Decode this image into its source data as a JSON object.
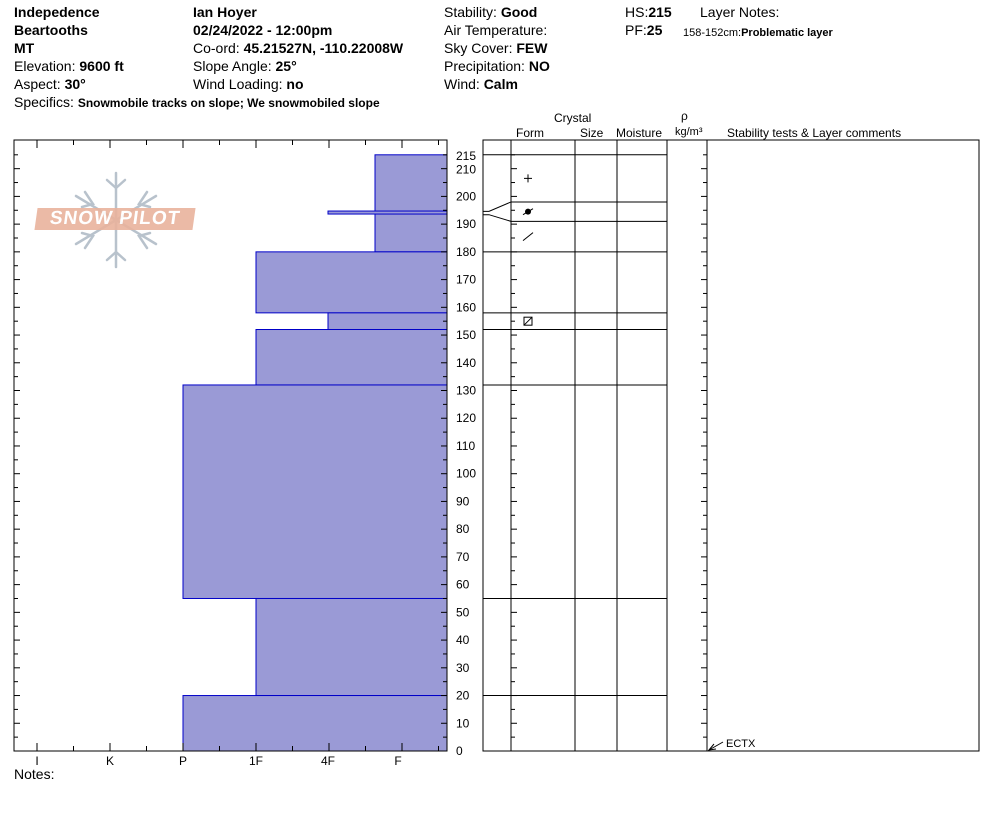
{
  "header": {
    "location": "Indepedence",
    "range": "Beartooths",
    "state": "MT",
    "elevation_label": "Elevation:",
    "elevation": "9600 ft",
    "aspect_label": "Aspect:",
    "aspect": "30°",
    "observer": "Ian Hoyer",
    "datetime": "02/24/2022 - 12:00pm",
    "coord_label": "Co-ord:",
    "coord": "45.21527N, -110.22008W",
    "slope_label": "Slope Angle:",
    "slope": "25°",
    "wind_loading_label": "Wind Loading:",
    "wind_loading": "no",
    "stability_label": "Stability:",
    "stability": "Good",
    "air_temp_label": "Air Temperature:",
    "air_temp": "",
    "sky_label": "Sky Cover:",
    "sky": "FEW",
    "precip_label": "Precipitation:",
    "precip": "NO",
    "wind_label": "Wind:",
    "wind": "Calm",
    "hs_label": "HS:",
    "hs": "215",
    "pf_label": "PF:",
    "pf": "25",
    "layer_notes_label": "Layer Notes:",
    "layer_note_range": "158-152cm:",
    "layer_note_text": "Problematic layer",
    "specifics_label": "Specifics:",
    "specifics": "Snowmobile tracks on slope; We snowmobiled slope",
    "notes_label": "Notes:"
  },
  "logo_text": "SNOW PILOT",
  "columns": {
    "crystal": "Crystal",
    "form": "Form",
    "size": "Size",
    "moisture": "Moisture",
    "rho": "ρ",
    "density_unit": "kg/m³",
    "comments": "Stability tests & Layer comments"
  },
  "colors": {
    "layer_fill": "#9a9ad6",
    "layer_stroke": "#0000c8"
  },
  "chart_data": {
    "type": "bar",
    "orientation": "horizontal",
    "y_axis": {
      "range": [
        0,
        215
      ],
      "ticks": [
        0,
        10,
        20,
        30,
        40,
        50,
        60,
        70,
        80,
        90,
        100,
        110,
        120,
        130,
        140,
        150,
        160,
        170,
        180,
        190,
        200,
        210,
        215
      ]
    },
    "hardness_scale": [
      "I",
      "K",
      "P",
      "1F",
      "4F",
      "F"
    ],
    "layers": [
      {
        "top": 215,
        "bottom": 180,
        "hardness": "F+"
      },
      {
        "top": 180,
        "bottom": 158,
        "hardness": "1F"
      },
      {
        "top": 158,
        "bottom": 152,
        "hardness": "4F"
      },
      {
        "top": 152,
        "bottom": 132,
        "hardness": "1F"
      },
      {
        "top": 132,
        "bottom": 55,
        "hardness": "P"
      },
      {
        "top": 55,
        "bottom": 20,
        "hardness": "1F"
      },
      {
        "top": 20,
        "bottom": 0,
        "hardness": "P"
      }
    ],
    "thin_layer": {
      "height": 194,
      "hardness": "4F"
    },
    "grain_layers": [
      {
        "top": 215,
        "bottom": 198,
        "grain": "+"
      },
      {
        "top": 198,
        "bottom": 191,
        "grain": "surface-hoar"
      },
      {
        "top": 191,
        "bottom": 180,
        "grain": "/"
      },
      {
        "top": 158,
        "bottom": 152,
        "grain": "faceted-rounded"
      }
    ],
    "stability_tests": [
      {
        "height": 0,
        "label": "ECTX"
      }
    ]
  }
}
